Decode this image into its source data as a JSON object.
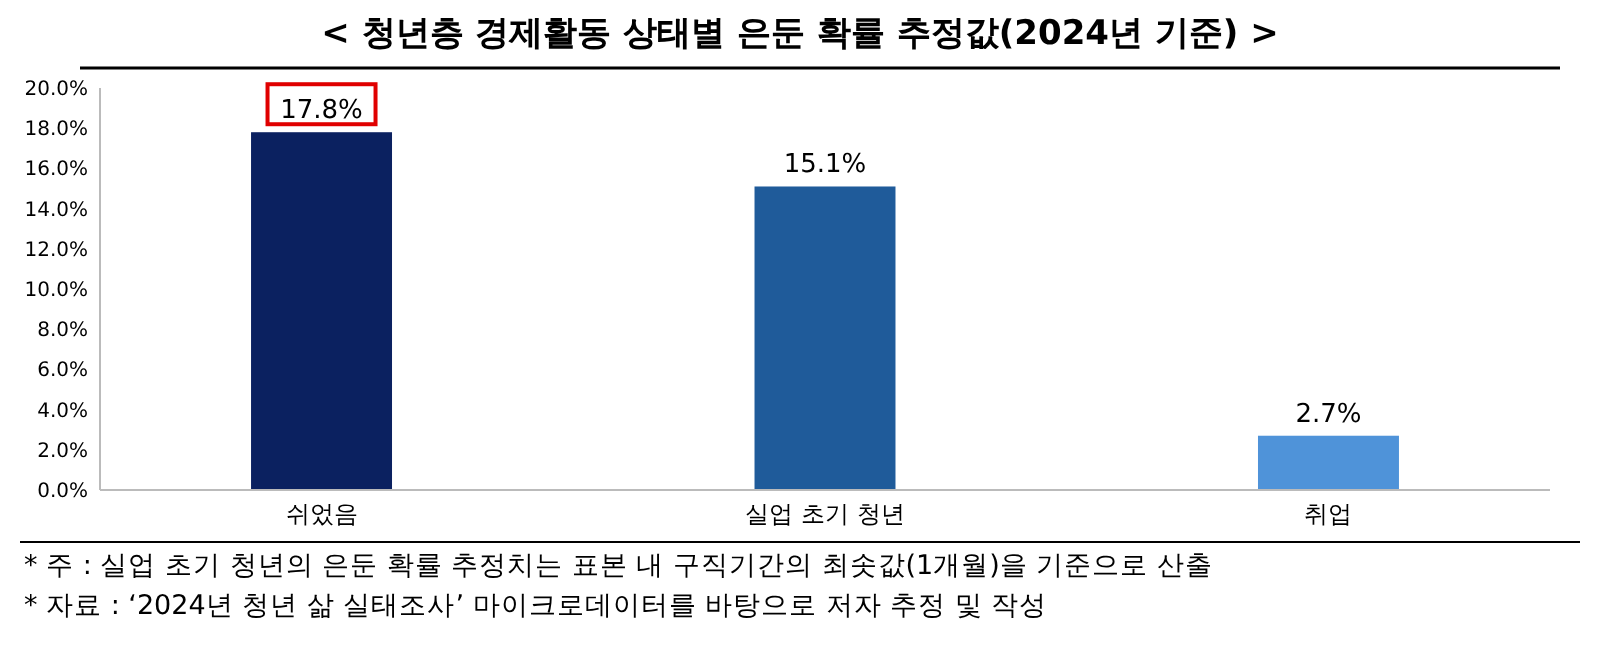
{
  "chart_data": {
    "type": "bar",
    "title": "< 청년층 경제활동 상태별 은둔 확률 추정값(2024년 기준) >",
    "categories": [
      "쉬었음",
      "실업 초기 청년",
      "취업"
    ],
    "values": [
      17.8,
      15.1,
      2.7
    ],
    "colors": [
      "#0b2160",
      "#1f5b9a",
      "#4f93d9"
    ],
    "value_labels": [
      "17.8%",
      "15.1%",
      "2.7%"
    ],
    "ylim": [
      0,
      20
    ],
    "yticks": [
      {
        "value": 0,
        "label": "0.0%"
      },
      {
        "value": 2,
        "label": "2.0%"
      },
      {
        "value": 4,
        "label": "4.0%"
      },
      {
        "value": 6,
        "label": "6.0%"
      },
      {
        "value": 8,
        "label": "8.0%"
      },
      {
        "value": 10,
        "label": "10.0%"
      },
      {
        "value": 12,
        "label": "12.0%"
      },
      {
        "value": 14,
        "label": "14.0%"
      },
      {
        "value": 16,
        "label": "16.0%"
      },
      {
        "value": 18,
        "label": "18.0%"
      },
      {
        "value": 20,
        "label": "20.0%"
      }
    ],
    "grid": false,
    "annotations": [
      "* 주 : 실업 초기 청년의 은둔 확률 추정치는 표본 내 구직기간의 최솟값(1개월)을 기준으로 산출",
      "* 자료 : ‘2024년 청년 삶 실태조사’ 마이크로데이터를 바탕으로 저자 추정 및 작성"
    ]
  }
}
